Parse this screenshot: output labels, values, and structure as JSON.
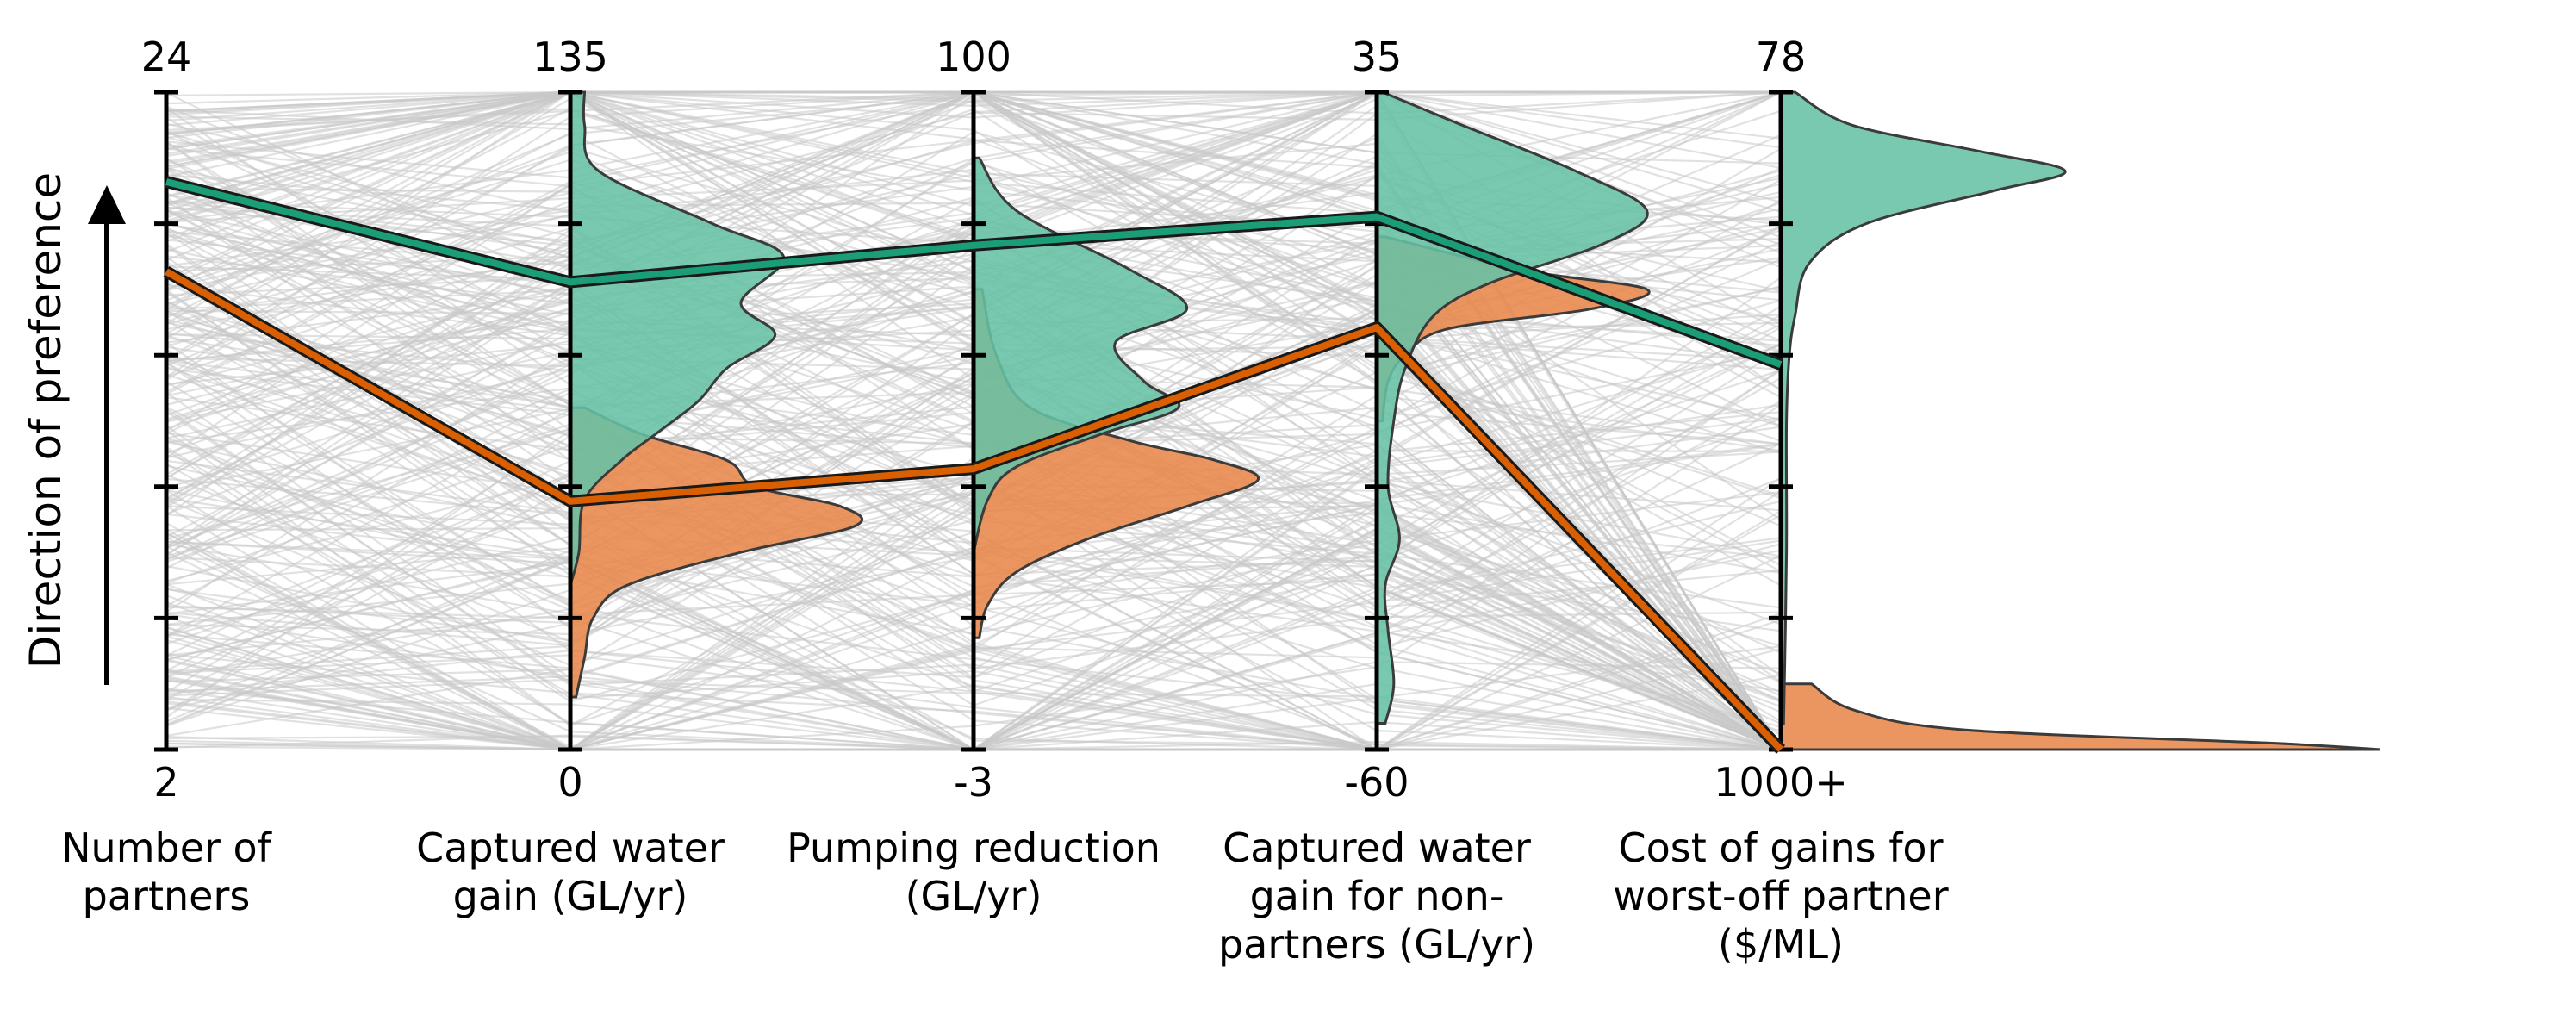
{
  "chart_data": {
    "type": "parallel-coordinates",
    "preference_label": "Direction of preference",
    "axes": [
      {
        "id": "partners",
        "title_lines": [
          "Number of",
          "partners"
        ],
        "top_label": "24",
        "bottom_label": "2",
        "top_value": 24,
        "bottom_value": 2
      },
      {
        "id": "captured",
        "title_lines": [
          "Captured water",
          "gain (GL/yr)"
        ],
        "top_label": "135",
        "bottom_label": "0",
        "top_value": 135,
        "bottom_value": 0
      },
      {
        "id": "pumping",
        "title_lines": [
          "Pumping reduction",
          "(GL/yr)"
        ],
        "top_label": "100",
        "bottom_label": "-3",
        "top_value": 100,
        "bottom_value": -3
      },
      {
        "id": "nonpartners",
        "title_lines": [
          "Captured water",
          "gain for non-",
          "partners (GL/yr)"
        ],
        "top_label": "35",
        "bottom_label": "-60",
        "top_value": 35,
        "bottom_value": -60
      },
      {
        "id": "cost",
        "title_lines": [
          "Cost of gains for",
          "worst-off partner",
          "($/ML)"
        ],
        "top_label": "78",
        "bottom_label": "1000+",
        "top_value": 78,
        "bottom_value": 1000
      }
    ],
    "highlighted_solutions": [
      {
        "color": "#1b9e77",
        "fill_color": "#66c2a5",
        "values": [
          21,
          96,
          76,
          17,
          460
        ]
      },
      {
        "color": "#d95f02",
        "fill_color": "#e8884a",
        "values": [
          18,
          51,
          41,
          1,
          1000
        ]
      }
    ],
    "background_line_color": "#c8c8c8",
    "background_line_count": 320,
    "distributions_normalized": {
      "green": {
        "partners": [],
        "captured": [
          [
            0.0,
            0.05
          ],
          [
            0.05,
            0.05
          ],
          [
            0.12,
            0.1
          ],
          [
            0.2,
            0.5
          ],
          [
            0.25,
            0.75
          ],
          [
            0.32,
            0.6
          ],
          [
            0.37,
            0.72
          ],
          [
            0.42,
            0.55
          ],
          [
            0.47,
            0.45
          ],
          [
            0.52,
            0.3
          ],
          [
            0.56,
            0.18
          ],
          [
            0.62,
            0.05
          ],
          [
            0.7,
            0.03
          ],
          [
            0.75,
            0.0
          ]
        ],
        "pumping": [
          [
            0.1,
            0.02
          ],
          [
            0.18,
            0.15
          ],
          [
            0.27,
            0.55
          ],
          [
            0.33,
            0.75
          ],
          [
            0.38,
            0.5
          ],
          [
            0.44,
            0.6
          ],
          [
            0.48,
            0.72
          ],
          [
            0.52,
            0.45
          ],
          [
            0.57,
            0.15
          ],
          [
            0.62,
            0.05
          ],
          [
            0.7,
            0.0
          ]
        ],
        "nonpartners": [
          [
            0.0,
            0.02
          ],
          [
            0.05,
            0.3
          ],
          [
            0.12,
            0.7
          ],
          [
            0.18,
            0.95
          ],
          [
            0.23,
            0.8
          ],
          [
            0.29,
            0.4
          ],
          [
            0.34,
            0.2
          ],
          [
            0.42,
            0.1
          ],
          [
            0.5,
            0.06
          ],
          [
            0.6,
            0.04
          ],
          [
            0.68,
            0.08
          ],
          [
            0.75,
            0.03
          ],
          [
            0.82,
            0.04
          ],
          [
            0.9,
            0.06
          ],
          [
            0.96,
            0.03
          ]
        ],
        "cost": [
          [
            0.0,
            0.05
          ],
          [
            0.05,
            0.25
          ],
          [
            0.09,
            0.7
          ],
          [
            0.12,
            1.0
          ],
          [
            0.15,
            0.75
          ],
          [
            0.2,
            0.3
          ],
          [
            0.26,
            0.1
          ],
          [
            0.34,
            0.05
          ],
          [
            0.4,
            0.03
          ],
          [
            0.5,
            0.02
          ],
          [
            0.7,
            0.02
          ],
          [
            0.96,
            0.01
          ]
        ]
      },
      "orange": {
        "partners": [],
        "captured": [
          [
            0.48,
            0.05
          ],
          [
            0.52,
            0.25
          ],
          [
            0.56,
            0.55
          ],
          [
            0.6,
            0.65
          ],
          [
            0.63,
            0.95
          ],
          [
            0.66,
            1.0
          ],
          [
            0.7,
            0.6
          ],
          [
            0.75,
            0.2
          ],
          [
            0.8,
            0.08
          ],
          [
            0.86,
            0.05
          ],
          [
            0.92,
            0.02
          ]
        ],
        "pumping": [
          [
            0.3,
            0.03
          ],
          [
            0.4,
            0.08
          ],
          [
            0.48,
            0.2
          ],
          [
            0.53,
            0.55
          ],
          [
            0.56,
            0.85
          ],
          [
            0.59,
            1.0
          ],
          [
            0.63,
            0.75
          ],
          [
            0.68,
            0.4
          ],
          [
            0.73,
            0.15
          ],
          [
            0.78,
            0.05
          ],
          [
            0.83,
            0.02
          ]
        ],
        "nonpartners": [
          [
            0.22,
            0.03
          ],
          [
            0.27,
            0.5
          ],
          [
            0.3,
            0.95
          ],
          [
            0.33,
            0.75
          ],
          [
            0.36,
            0.25
          ],
          [
            0.4,
            0.1
          ],
          [
            0.44,
            0.04
          ],
          [
            0.5,
            0.02
          ]
        ],
        "cost": [
          [
            0.9,
            0.05
          ],
          [
            0.94,
            0.12
          ],
          [
            0.97,
            0.3
          ],
          [
            0.99,
            0.8
          ],
          [
            1.0,
            0.98
          ]
        ]
      }
    }
  }
}
